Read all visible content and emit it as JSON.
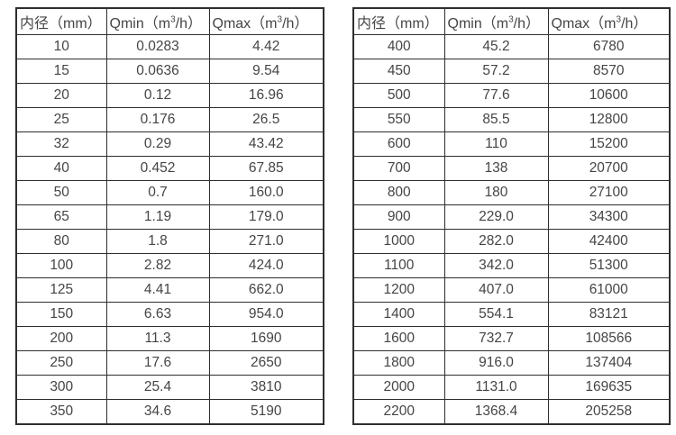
{
  "colors": {
    "background": "#ffffff",
    "text": "#454545",
    "border": "#2e2e2e"
  },
  "headers": {
    "diameter": "内径（mm）",
    "qmin": {
      "prefix": "Qmin（m",
      "sup": "3",
      "suffix": "/h）"
    },
    "qmax": {
      "prefix": "Qmax（m",
      "sup": "3",
      "suffix": "/h）"
    }
  },
  "tables": {
    "left": {
      "rows": [
        [
          "10",
          "0.0283",
          "4.42"
        ],
        [
          "15",
          "0.0636",
          "9.54"
        ],
        [
          "20",
          "0.12",
          "16.96"
        ],
        [
          "25",
          "0.176",
          "26.5"
        ],
        [
          "32",
          "0.29",
          "43.42"
        ],
        [
          "40",
          "0.452",
          "67.85"
        ],
        [
          "50",
          "0.7",
          "160.0"
        ],
        [
          "65",
          "1.19",
          "179.0"
        ],
        [
          "80",
          "1.8",
          "271.0"
        ],
        [
          "100",
          "2.82",
          "424.0"
        ],
        [
          "125",
          "4.41",
          "662.0"
        ],
        [
          "150",
          "6.63",
          "954.0"
        ],
        [
          "200",
          "11.3",
          "1690"
        ],
        [
          "250",
          "17.6",
          "2650"
        ],
        [
          "300",
          "25.4",
          "3810"
        ],
        [
          "350",
          "34.6",
          "5190"
        ]
      ]
    },
    "right": {
      "rows": [
        [
          "400",
          "45.2",
          "6780"
        ],
        [
          "450",
          "57.2",
          "8570"
        ],
        [
          "500",
          "77.6",
          "10600"
        ],
        [
          "550",
          "85.5",
          "12800"
        ],
        [
          "600",
          "110",
          "15200"
        ],
        [
          "700",
          "138",
          "20700"
        ],
        [
          "800",
          "180",
          "27100"
        ],
        [
          "900",
          "229.0",
          "34300"
        ],
        [
          "1000",
          "282.0",
          "42400"
        ],
        [
          "1100",
          "342.0",
          "51300"
        ],
        [
          "1200",
          "407.0",
          "61000"
        ],
        [
          "1400",
          "554.1",
          "83121"
        ],
        [
          "1600",
          "732.7",
          "108566"
        ],
        [
          "1800",
          "916.0",
          "137404"
        ],
        [
          "2000",
          "1131.0",
          "169635"
        ],
        [
          "2200",
          "1368.4",
          "205258"
        ]
      ]
    }
  }
}
